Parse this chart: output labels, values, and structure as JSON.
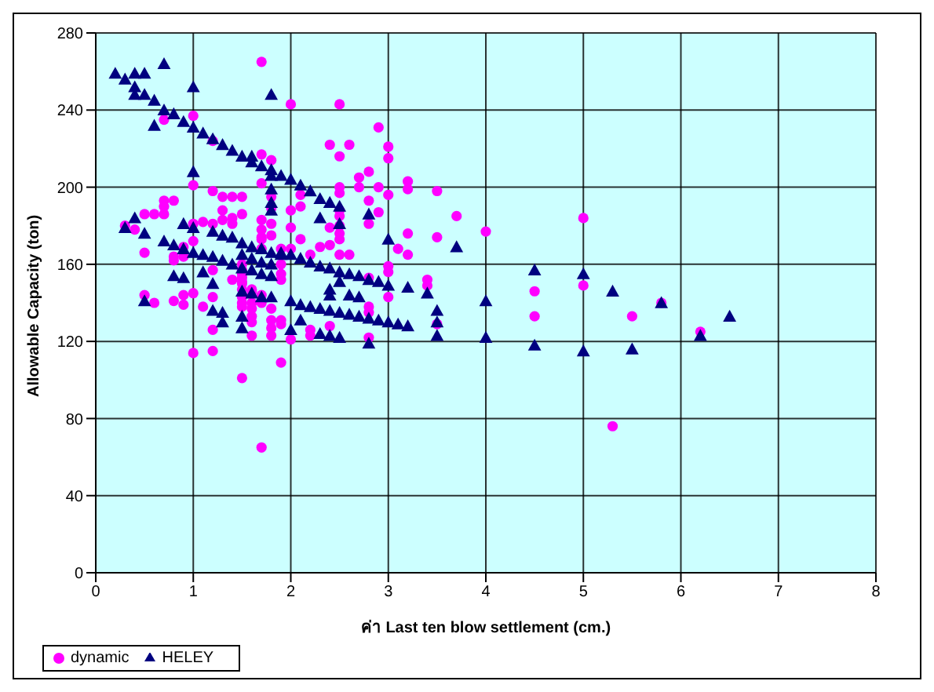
{
  "chart_data": {
    "type": "scatter",
    "xlabel": "ค่า Last ten blow settlement (cm.)",
    "ylabel": "Allowable Capacity (ton)",
    "xlim": [
      0,
      8
    ],
    "xticks": [
      0,
      1,
      2,
      3,
      4,
      5,
      6,
      7,
      8
    ],
    "ylim": [
      0,
      280
    ],
    "yticks": [
      0,
      40,
      80,
      120,
      160,
      200,
      240,
      280
    ],
    "grid": true,
    "legend": "bottom left",
    "series": [
      {
        "name": "dynamic",
        "color": "#ff00ff",
        "marker": "circle",
        "x": [
          1.7,
          0.7,
          1.0,
          1.2,
          1.7,
          1.8,
          1.7,
          1.0,
          1.8,
          2.0,
          2.5,
          2.9,
          2.4,
          2.6,
          3.0,
          2.5,
          3.0,
          2.7,
          2.8,
          2.7,
          2.9,
          2.5,
          2.5,
          3.2,
          3.2,
          3.5,
          3.0,
          2.1,
          2.1,
          2.0,
          2.8,
          2.9,
          2.8,
          2.5,
          2.5,
          2.5,
          2.4,
          2.4,
          2.5,
          2.5,
          2.0,
          2.1,
          2.3,
          2.0,
          2.2,
          2.5,
          2.6,
          3.2,
          3.5,
          3.7,
          4.0,
          3.1,
          3.2,
          3.0,
          3.0,
          2.8,
          3.4,
          3.4,
          3.0,
          2.8,
          2.8,
          1.9,
          1.9,
          2.2,
          2.2,
          2.4,
          2.0,
          2.8,
          1.9,
          1.9,
          3.5,
          0.3,
          0.5,
          0.6,
          0.7,
          0.4,
          0.5,
          0.8,
          0.8,
          0.9,
          0.9,
          1.0,
          1.2,
          1.3,
          1.3,
          1.4,
          1.4,
          1.5,
          1.7,
          1.7,
          1.7,
          1.8,
          1.8,
          1.8,
          0.5,
          0.6,
          0.8,
          0.9,
          0.9,
          1.0,
          1.1,
          1.2,
          1.2,
          1.0,
          1.2,
          1.5,
          1.5,
          1.5,
          1.5,
          1.5,
          1.5,
          1.6,
          1.6,
          1.6,
          1.6,
          1.6,
          1.6,
          1.7,
          1.7,
          1.8,
          1.8,
          1.8,
          1.8,
          1.9,
          1.9,
          1.5,
          1.7,
          0.7,
          0.8,
          0.7,
          1.2,
          1.3,
          1.4,
          1.5,
          1.1,
          1.0,
          1.7,
          1.7,
          1.9,
          1.6,
          1.2,
          1.4,
          1.5,
          1.5,
          1.5,
          1.5,
          4.5,
          4.5,
          5.0,
          5.0,
          5.5,
          5.8,
          6.2,
          5.3
        ],
        "values": [
          265,
          235,
          237,
          224,
          217,
          214,
          202,
          201,
          195,
          243,
          243,
          231,
          222,
          222,
          221,
          216,
          215,
          205,
          208,
          200,
          200,
          200,
          197,
          203,
          199,
          198,
          196,
          196,
          190,
          188,
          193,
          187,
          181,
          188,
          185,
          180,
          179,
          170,
          176,
          173,
          179,
          173,
          169,
          168,
          165,
          165,
          165,
          176,
          174,
          185,
          177,
          168,
          165,
          159,
          156,
          153,
          149,
          152,
          143,
          138,
          135,
          160,
          152,
          126,
          123,
          128,
          121,
          122,
          109,
          129,
          129,
          180,
          186,
          186,
          186,
          178,
          166,
          164,
          162,
          169,
          164,
          172,
          181,
          188,
          183,
          184,
          181,
          186,
          183,
          178,
          174,
          189,
          181,
          175,
          144,
          140,
          141,
          144,
          139,
          145,
          138,
          157,
          126,
          114,
          115,
          151,
          155,
          147,
          143,
          140,
          138,
          147,
          140,
          137,
          133,
          130,
          123,
          144,
          140,
          137,
          131,
          127,
          123,
          155,
          131,
          101,
          65,
          193,
          193,
          190,
          198,
          195,
          195,
          195,
          182,
          181,
          168,
          173,
          168,
          146,
          143,
          152,
          160,
          157,
          153,
          150,
          146,
          133,
          184,
          149,
          133,
          140,
          125,
          76
        ]
      },
      {
        "name": "HELEY",
        "color": "#000080",
        "marker": "triangle",
        "x": [
          0.2,
          0.3,
          0.4,
          0.5,
          0.7,
          0.4,
          0.4,
          0.5,
          0.6,
          0.7,
          0.8,
          0.9,
          0.6,
          1.0,
          1.0,
          1.1,
          1.2,
          1.3,
          1.4,
          1.5,
          1.6,
          1.6,
          1.7,
          1.8,
          1.8,
          1.9,
          1.8,
          1.0,
          1.8,
          1.8,
          1.8,
          2.0,
          2.1,
          2.2,
          2.3,
          2.4,
          2.5,
          2.5,
          2.8,
          3.0,
          3.7,
          0.3,
          0.4,
          0.5,
          0.9,
          1.0,
          0.7,
          0.8,
          0.9,
          1.0,
          1.1,
          1.2,
          1.3,
          1.4,
          1.5,
          1.6,
          1.7,
          1.8,
          1.2,
          1.3,
          1.4,
          1.5,
          1.6,
          1.7,
          1.8,
          1.9,
          1.5,
          1.6,
          1.7,
          1.8,
          1.9,
          2.0,
          2.1,
          2.2,
          2.3,
          2.4,
          2.5,
          2.6,
          2.7,
          2.8,
          2.9,
          3.0,
          3.2,
          3.4,
          3.5,
          3.5,
          3.5,
          4.0,
          4.0,
          4.5,
          4.5,
          0.8,
          0.9,
          1.1,
          1.2,
          0.5,
          1.2,
          1.3,
          1.3,
          1.5,
          1.6,
          1.7,
          1.8,
          1.5,
          1.5,
          2.0,
          2.1,
          2.2,
          2.3,
          2.4,
          2.5,
          2.6,
          2.7,
          2.8,
          2.9,
          3.0,
          3.1,
          3.2,
          2.0,
          2.1,
          2.3,
          2.4,
          2.5,
          2.8,
          2.4,
          2.4,
          2.6,
          2.7,
          2.5,
          2.3,
          5.0,
          5.0,
          5.3,
          5.5,
          5.8,
          6.2,
          6.5
        ],
        "values": [
          259,
          256,
          259,
          259,
          264,
          252,
          248,
          248,
          245,
          240,
          238,
          234,
          232,
          252,
          231,
          228,
          225,
          222,
          219,
          216,
          216,
          213,
          211,
          209,
          206,
          206,
          248,
          208,
          199,
          192,
          188,
          204,
          201,
          198,
          194,
          192,
          190,
          181,
          186,
          173,
          169,
          179,
          184,
          176,
          181,
          179,
          172,
          170,
          168,
          166,
          165,
          164,
          162,
          160,
          158,
          157,
          155,
          154,
          177,
          175,
          174,
          171,
          169,
          168,
          166,
          166,
          165,
          163,
          161,
          160,
          165,
          165,
          163,
          161,
          159,
          158,
          156,
          155,
          154,
          152,
          151,
          149,
          148,
          145,
          136,
          130,
          123,
          141,
          122,
          157,
          118,
          154,
          153,
          156,
          150,
          141,
          136,
          135,
          130,
          146,
          145,
          143,
          143,
          133,
          127,
          141,
          139,
          138,
          137,
          136,
          135,
          134,
          133,
          132,
          131,
          130,
          129,
          128,
          126,
          131,
          124,
          123,
          122,
          119,
          147,
          144,
          144,
          143,
          151,
          184,
          155,
          115,
          146,
          116,
          140,
          123,
          133
        ]
      }
    ]
  }
}
